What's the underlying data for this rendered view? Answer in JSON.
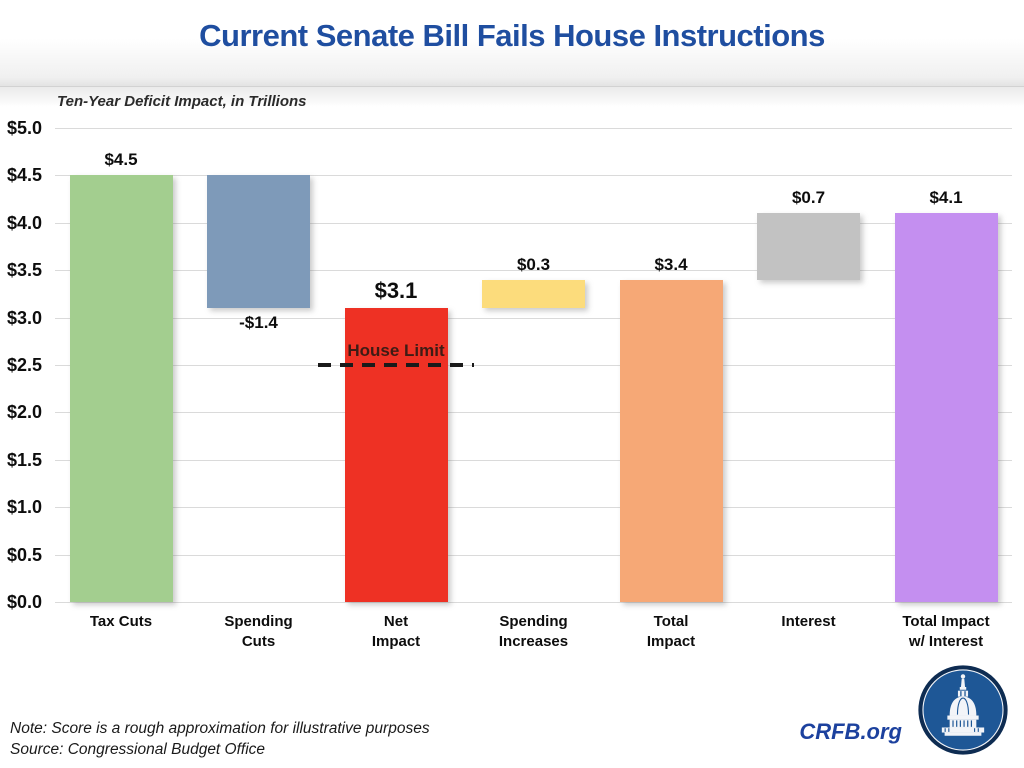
{
  "slide": {
    "title": "Current Senate Bill Fails House Instructions",
    "subtitle": "Ten-Year Deficit Impact, in Trillions"
  },
  "chart_data": {
    "type": "bar",
    "subtype": "waterfall",
    "title": "Current Senate Bill Fails House Instructions",
    "axis_note": "Ten-Year Deficit Impact, in Trillions",
    "ylim": [
      0,
      5
    ],
    "grid": true,
    "legend": "none",
    "y_ticks": [
      "$5.0",
      "$4.5",
      "$4.0",
      "$3.5",
      "$3.0",
      "$2.5",
      "$2.0",
      "$1.5",
      "$1.0",
      "$0.5",
      "$0.0"
    ],
    "categories": [
      "Tax Cuts",
      "Spending Cuts",
      "Net Impact",
      "Spending Increases",
      "Total Impact",
      "Interest",
      "Total Impact w/ Interest"
    ],
    "bars": [
      {
        "category": "Tax Cuts",
        "label_lines": "Tax Cuts",
        "value": 4.5,
        "start": 0,
        "end": 4.5,
        "value_label": "$4.5",
        "label_pos": "above",
        "color": "#a3ce8f"
      },
      {
        "category": "Spending Cuts",
        "label_lines": "Spending\nCuts",
        "value": -1.4,
        "start": 3.1,
        "end": 4.5,
        "value_label": "-$1.4",
        "label_pos": "below",
        "color": "#7e9ab9"
      },
      {
        "category": "Net Impact",
        "label_lines": "Net\nImpact",
        "value": 3.1,
        "start": 0,
        "end": 3.1,
        "value_label": "$3.1",
        "label_pos": "above-large",
        "color": "#ee3124"
      },
      {
        "category": "Spending Increases",
        "label_lines": "Spending\nIncreases",
        "value": 0.3,
        "start": 3.1,
        "end": 3.4,
        "value_label": "$0.3",
        "label_pos": "above",
        "color": "#fcdc7c"
      },
      {
        "category": "Total Impact",
        "label_lines": "Total\nImpact",
        "value": 3.4,
        "start": 0,
        "end": 3.4,
        "value_label": "$3.4",
        "label_pos": "above",
        "color": "#f6a876"
      },
      {
        "category": "Interest",
        "label_lines": "Interest",
        "value": 0.7,
        "start": 3.4,
        "end": 4.1,
        "value_label": "$0.7",
        "label_pos": "above",
        "color": "#c2c2c2"
      },
      {
        "category": "Total Impact w/ Interest",
        "label_lines": "Total Impact\nw/ Interest",
        "value": 4.1,
        "start": 0,
        "end": 4.1,
        "value_label": "$4.1",
        "label_pos": "above",
        "color": "#c48ff0"
      }
    ],
    "reference_line": {
      "label": "House Limit",
      "value": 2.5
    }
  },
  "footer": {
    "note": "Note: Score is a rough approximation for illustrative purposes",
    "source": "Source: Congressional Budget Office",
    "brand": "CRFB.org"
  },
  "colors": {
    "title_blue": "#1f4ea0",
    "brand_blue": "#1c419e",
    "gridline": "#dadada",
    "house_limit_text": "#3e1c15",
    "logo_disc_blue": "#1e5796",
    "logo_ring_navy": "#0e2c52"
  }
}
